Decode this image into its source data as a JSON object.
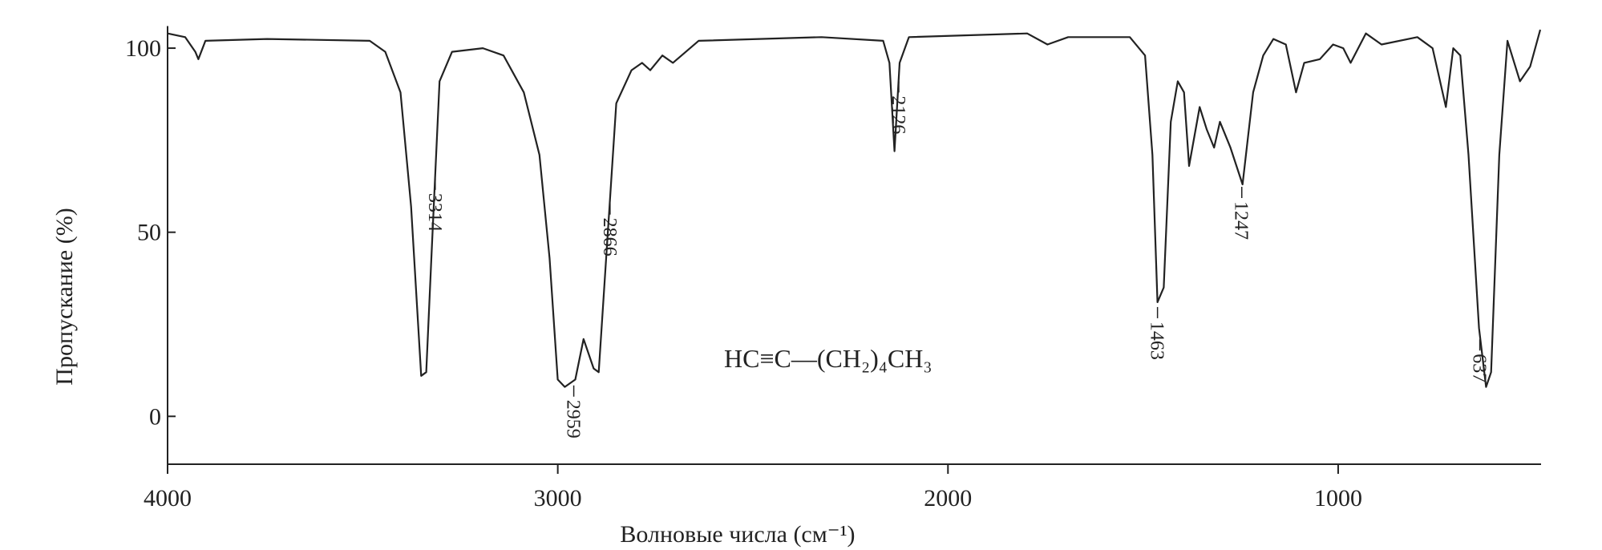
{
  "chart_data": {
    "type": "line",
    "xlabel": "Волновые числа (см⁻¹)",
    "ylabel": "Пропускание  (%)",
    "annotation": "HC≡C—(CH₂)₄CH₃",
    "color": "#222222",
    "xlim": [
      4000,
      480
    ],
    "xticks": [
      4000,
      3000,
      2000,
      1000
    ],
    "ylim": [
      -13,
      106
    ],
    "yticks": [
      0,
      50,
      100
    ],
    "x": [
      4000,
      3955,
      3929,
      3921,
      3903,
      3745,
      3482,
      3442,
      3403,
      3376,
      3350,
      3337,
      3324,
      3303,
      3271,
      3192,
      3139,
      3087,
      3047,
      3021,
      3000,
      2982,
      2955,
      2934,
      2908,
      2895,
      2876,
      2850,
      2811,
      2784,
      2763,
      2732,
      2705,
      2639,
      2324,
      2166,
      2150,
      2137,
      2124,
      2100,
      1797,
      1745,
      1692,
      1534,
      1495,
      1476,
      1463,
      1447,
      1429,
      1411,
      1395,
      1382,
      1355,
      1337,
      1318,
      1303,
      1276,
      1245,
      1218,
      1192,
      1166,
      1134,
      1108,
      1087,
      1047,
      1013,
      987,
      968,
      929,
      889,
      797,
      758,
      724,
      705,
      687,
      666,
      639,
      621,
      608,
      587,
      566,
      534,
      508,
      482
    ],
    "values": [
      104,
      103,
      99,
      97,
      102,
      102.5,
      102,
      99,
      88,
      57,
      11,
      12,
      43,
      91,
      99,
      100,
      98,
      88,
      71,
      43,
      10,
      8,
      10,
      21,
      13,
      12,
      43,
      85,
      94,
      96,
      94,
      98,
      96,
      102,
      103,
      102,
      96,
      72,
      96,
      103,
      104,
      101,
      103,
      103,
      98,
      71,
      31,
      35,
      80,
      91,
      88,
      68,
      84,
      78,
      73,
      80,
      73,
      63,
      88,
      98,
      102.5,
      101,
      88,
      96,
      97,
      101,
      100,
      96,
      104,
      101,
      103,
      100,
      84,
      100,
      98,
      71,
      24,
      8,
      12,
      71,
      102,
      91,
      95,
      105
    ],
    "peak_labels": [
      3314,
      2959,
      2866,
      2126,
      1463,
      1247,
      637
    ]
  }
}
